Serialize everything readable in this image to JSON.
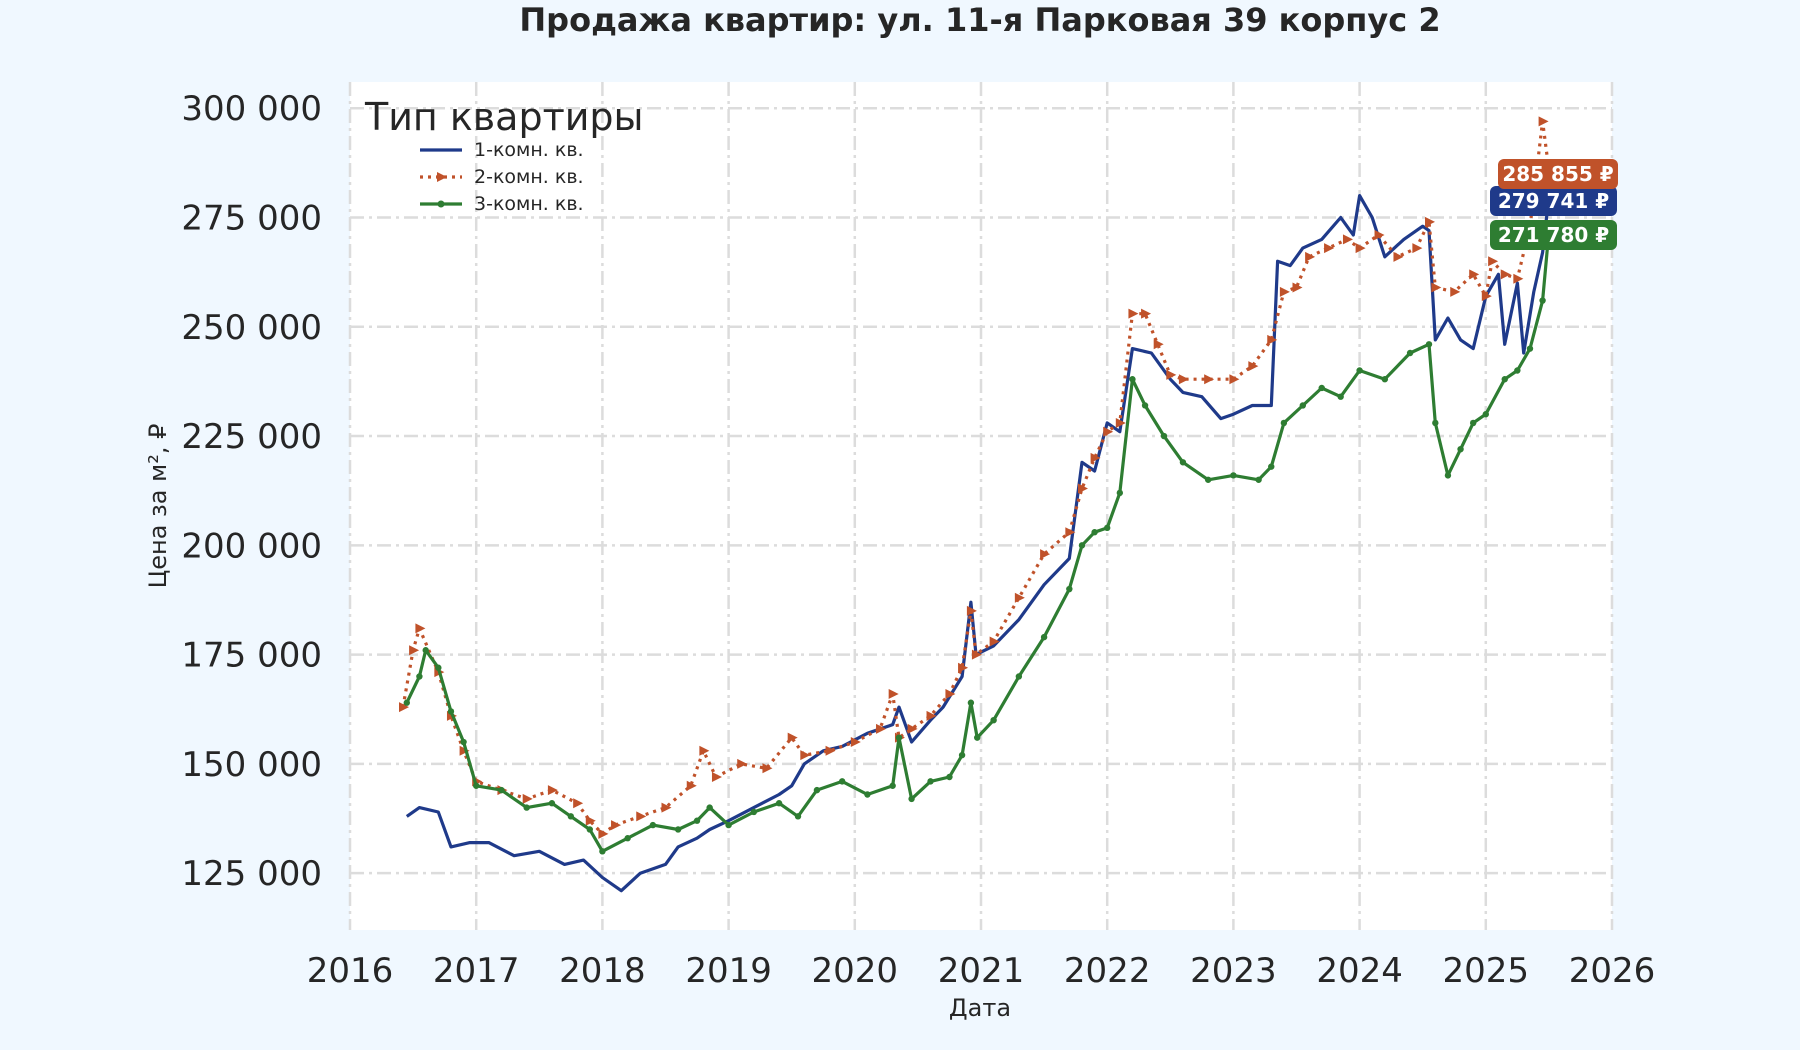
{
  "chart_data": {
    "type": "line",
    "title": "Продажа квартир: ул. 11-я Парковая 39 корпус 2",
    "xlabel": "Дата",
    "ylabel": "Цена за м², ₽",
    "xlim": [
      2016,
      2026
    ],
    "ylim": [
      112000,
      306000
    ],
    "x_ticks": [
      2016,
      2017,
      2018,
      2019,
      2020,
      2021,
      2022,
      2023,
      2024,
      2025,
      2026
    ],
    "y_ticks": [
      125000,
      150000,
      175000,
      200000,
      225000,
      250000,
      275000,
      300000
    ],
    "y_tick_labels": [
      "125 000",
      "150 000",
      "175 000",
      "200 000",
      "225 000",
      "250 000",
      "275 000",
      "300 000"
    ],
    "grid": true,
    "legend": {
      "title": "Тип квартиры",
      "placement": "top-left"
    },
    "series": [
      {
        "name": "1-комн. кв.",
        "color": "#1f3a8a",
        "style": "solid",
        "last_label": "279 741 ₽",
        "x": [
          2016.45,
          2016.55,
          2016.7,
          2016.8,
          2016.95,
          2017.1,
          2017.3,
          2017.5,
          2017.7,
          2017.85,
          2018.0,
          2018.15,
          2018.3,
          2018.5,
          2018.6,
          2018.75,
          2018.85,
          2019.0,
          2019.2,
          2019.4,
          2019.5,
          2019.6,
          2019.75,
          2019.9,
          2020.1,
          2020.3,
          2020.35,
          2020.45,
          2020.6,
          2020.7,
          2020.85,
          2020.92,
          2020.96,
          2021.1,
          2021.3,
          2021.5,
          2021.7,
          2021.8,
          2021.9,
          2022.0,
          2022.1,
          2022.2,
          2022.35,
          2022.5,
          2022.6,
          2022.75,
          2022.9,
          2023.0,
          2023.15,
          2023.3,
          2023.35,
          2023.45,
          2023.55,
          2023.7,
          2023.85,
          2023.95,
          2024.0,
          2024.1,
          2024.2,
          2024.35,
          2024.5,
          2024.55,
          2024.6,
          2024.7,
          2024.8,
          2024.9,
          2025.0,
          2025.1,
          2025.15,
          2025.25,
          2025.3,
          2025.38,
          2025.45,
          2025.5
        ],
        "y": [
          138000,
          140000,
          139000,
          131000,
          132000,
          132000,
          129000,
          130000,
          127000,
          128000,
          124000,
          121000,
          125000,
          127000,
          131000,
          133000,
          135000,
          137000,
          140000,
          143000,
          145000,
          150000,
          153000,
          154000,
          157000,
          159000,
          163000,
          155000,
          160000,
          163000,
          170000,
          187000,
          175000,
          177000,
          183000,
          191000,
          197000,
          219000,
          217000,
          228000,
          226000,
          245000,
          244000,
          238000,
          235000,
          234000,
          229000,
          230000,
          232000,
          232000,
          265000,
          264000,
          268000,
          270000,
          275000,
          271000,
          280000,
          275000,
          266000,
          270000,
          273000,
          272000,
          247000,
          252000,
          247000,
          245000,
          257000,
          262000,
          246000,
          260000,
          244000,
          258000,
          267000,
          279741
        ]
      },
      {
        "name": "2-комн. кв.",
        "color": "#c0522a",
        "style": "dotted-triangle",
        "last_label": "285 855 ₽",
        "x": [
          2016.42,
          2016.5,
          2016.55,
          2016.7,
          2016.8,
          2016.9,
          2017.0,
          2017.2,
          2017.4,
          2017.6,
          2017.8,
          2017.9,
          2018.0,
          2018.1,
          2018.3,
          2018.5,
          2018.7,
          2018.8,
          2018.9,
          2019.1,
          2019.3,
          2019.5,
          2019.6,
          2019.8,
          2020.0,
          2020.2,
          2020.3,
          2020.35,
          2020.45,
          2020.6,
          2020.75,
          2020.85,
          2020.92,
          2020.96,
          2021.1,
          2021.3,
          2021.5,
          2021.7,
          2021.8,
          2021.9,
          2022.0,
          2022.1,
          2022.2,
          2022.3,
          2022.4,
          2022.5,
          2022.6,
          2022.8,
          2023.0,
          2023.15,
          2023.3,
          2023.4,
          2023.5,
          2023.6,
          2023.75,
          2023.9,
          2024.0,
          2024.15,
          2024.3,
          2024.45,
          2024.55,
          2024.6,
          2024.75,
          2024.9,
          2025.0,
          2025.05,
          2025.15,
          2025.25,
          2025.35,
          2025.45,
          2025.5
        ],
        "y": [
          163000,
          176000,
          181000,
          171000,
          161000,
          153000,
          146000,
          144000,
          142000,
          144000,
          141000,
          137000,
          134000,
          136000,
          138000,
          140000,
          145000,
          153000,
          147000,
          150000,
          149000,
          156000,
          152000,
          153000,
          155000,
          158000,
          166000,
          156000,
          158000,
          161000,
          166000,
          172000,
          185000,
          175000,
          178000,
          188000,
          198000,
          203000,
          213000,
          220000,
          226000,
          228000,
          253000,
          253000,
          246000,
          239000,
          238000,
          238000,
          238000,
          241000,
          247000,
          258000,
          259000,
          266000,
          268000,
          270000,
          268000,
          271000,
          266000,
          268000,
          274000,
          259000,
          258000,
          262000,
          257000,
          265000,
          262000,
          261000,
          273000,
          297000,
          285855
        ]
      },
      {
        "name": "3-комн. кв.",
        "color": "#2e7d32",
        "style": "solid-star",
        "last_label": "271 780 ₽",
        "x": [
          2016.45,
          2016.55,
          2016.6,
          2016.7,
          2016.8,
          2016.9,
          2017.0,
          2017.2,
          2017.4,
          2017.6,
          2017.75,
          2017.9,
          2018.0,
          2018.2,
          2018.4,
          2018.6,
          2018.75,
          2018.85,
          2019.0,
          2019.2,
          2019.4,
          2019.55,
          2019.7,
          2019.9,
          2020.1,
          2020.3,
          2020.35,
          2020.45,
          2020.6,
          2020.75,
          2020.85,
          2020.92,
          2020.97,
          2021.1,
          2021.3,
          2021.5,
          2021.7,
          2021.8,
          2021.9,
          2022.0,
          2022.1,
          2022.2,
          2022.3,
          2022.45,
          2022.6,
          2022.8,
          2023.0,
          2023.2,
          2023.3,
          2023.4,
          2023.55,
          2023.7,
          2023.85,
          2024.0,
          2024.2,
          2024.4,
          2024.55,
          2024.6,
          2024.7,
          2024.8,
          2024.9,
          2025.0,
          2025.15,
          2025.25,
          2025.35,
          2025.45,
          2025.5
        ],
        "y": [
          164000,
          170000,
          176000,
          172000,
          162000,
          155000,
          145000,
          144000,
          140000,
          141000,
          138000,
          135000,
          130000,
          133000,
          136000,
          135000,
          137000,
          140000,
          136000,
          139000,
          141000,
          138000,
          144000,
          146000,
          143000,
          145000,
          156000,
          142000,
          146000,
          147000,
          152000,
          164000,
          156000,
          160000,
          170000,
          179000,
          190000,
          200000,
          203000,
          204000,
          212000,
          238000,
          232000,
          225000,
          219000,
          215000,
          216000,
          215000,
          218000,
          228000,
          232000,
          236000,
          234000,
          240000,
          238000,
          244000,
          246000,
          228000,
          216000,
          222000,
          228000,
          230000,
          238000,
          240000,
          245000,
          256000,
          271780
        ]
      }
    ]
  }
}
